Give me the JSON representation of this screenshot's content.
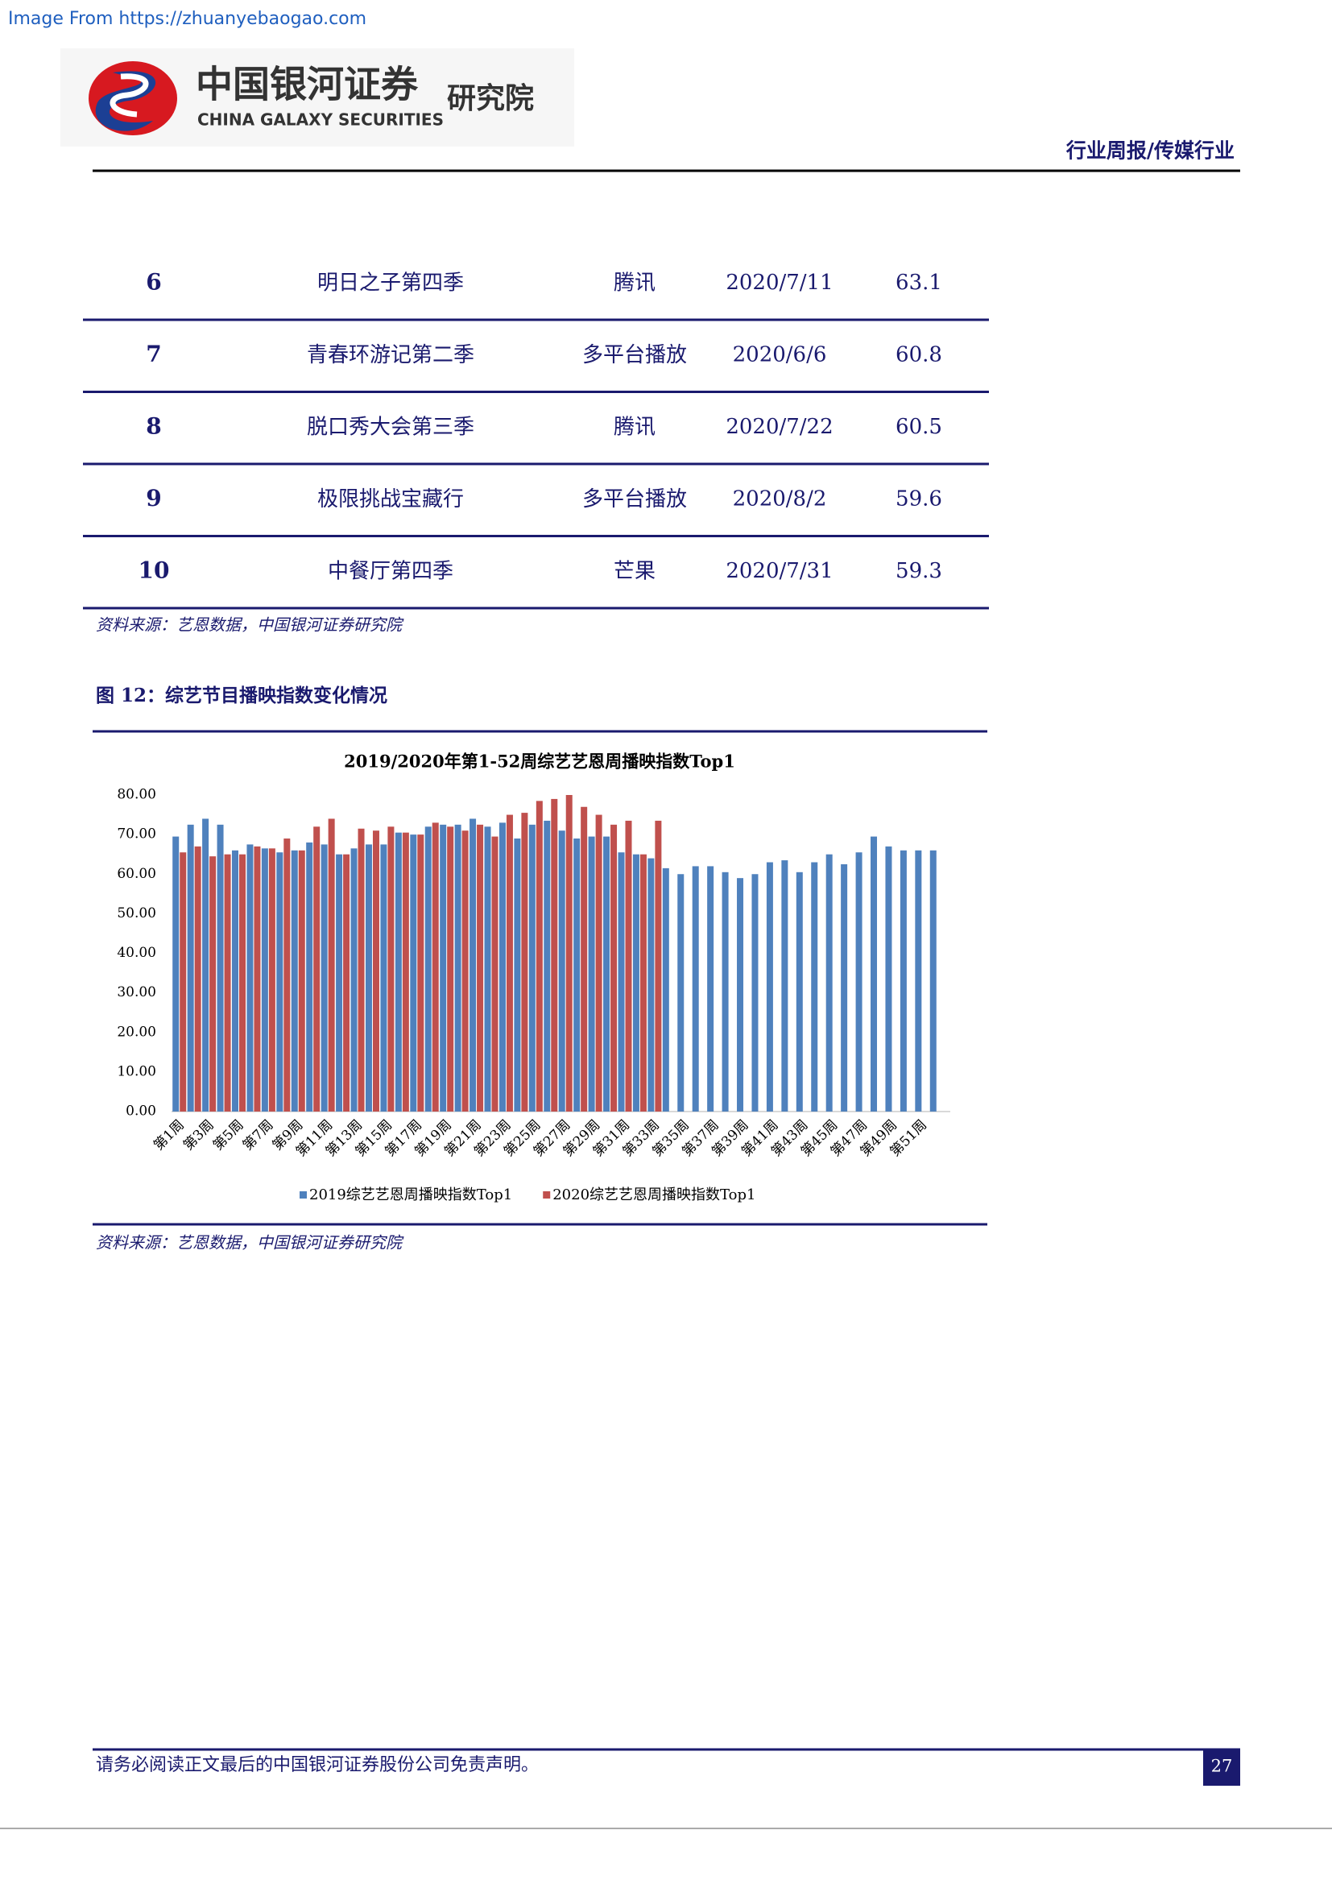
{
  "watermark": "Image From https://zhuanyebaogao.com",
  "header": {
    "logo_cn": "中国银河证券",
    "logo_en": "CHINA GALAXY SECURITIES",
    "institute": "研究院",
    "section": "行业周报/传媒行业"
  },
  "table": {
    "rows": [
      [
        "6",
        "明日之子第四季",
        "腾讯",
        "2020/7/11",
        "63.1"
      ],
      [
        "7",
        "青春环游记第二季",
        "多平台播放",
        "2020/6/6",
        "60.8"
      ],
      [
        "8",
        "脱口秀大会第三季",
        "腾讯",
        "2020/7/22",
        "60.5"
      ],
      [
        "9",
        "极限挑战宝藏行",
        "多平台播放",
        "2020/8/2",
        "59.6"
      ],
      [
        "10",
        "中餐厅第四季",
        "芒果",
        "2020/7/31",
        "59.3"
      ]
    ],
    "source": "资料来源：艺恩数据，中国银河证券研究院"
  },
  "figure": {
    "caption": "图 12：综艺节目播映指数变化情况",
    "source": "资料来源：艺恩数据，中国银河证券研究院"
  },
  "chart_data": {
    "type": "bar",
    "title": "2019/2020年第1-52周综艺艺恩周播映指数Top1",
    "categories": [
      "第1周",
      null,
      "第3周",
      null,
      "第5周",
      null,
      "第7周",
      null,
      "第9周",
      null,
      "第11周",
      null,
      "第13周",
      null,
      "第15周",
      null,
      "第17周",
      null,
      "第19周",
      null,
      "第21周",
      null,
      "第23周",
      null,
      "第25周",
      null,
      "第27周",
      null,
      "第29周",
      null,
      "第31周",
      null,
      "第33周",
      null,
      "第35周",
      null,
      "第37周",
      null,
      "第39周",
      null,
      "第41周",
      null,
      "第43周",
      null,
      "第45周",
      null,
      "第47周",
      null,
      "第49周",
      null,
      "第51周",
      null
    ],
    "series": [
      {
        "name": "2019综艺艺恩周播映指数Top1",
        "color": "#4f81bd",
        "values": [
          69.5,
          72.5,
          74,
          72.5,
          66,
          67.5,
          66.5,
          65.5,
          66,
          68,
          67.5,
          65,
          66.5,
          67.5,
          67.5,
          70.5,
          70,
          72,
          72.5,
          72.5,
          74,
          72,
          73,
          69,
          72.5,
          73.5,
          71,
          69,
          69.5,
          69.5,
          65.5,
          65,
          64,
          61.5,
          60,
          62,
          62,
          60.5,
          59,
          60,
          63,
          63.5,
          60.5,
          63,
          65,
          62.5,
          65.5,
          69.5,
          67,
          66,
          66,
          66
        ]
      },
      {
        "name": "2020综艺艺恩周播映指数Top1",
        "color": "#c0504d",
        "values": [
          65.5,
          67,
          64.5,
          65,
          65,
          67,
          66.5,
          69,
          66,
          72,
          74,
          65,
          71.5,
          71,
          72,
          70.5,
          70,
          73,
          72,
          71,
          72.5,
          69.5,
          75,
          75.5,
          78.5,
          79,
          80,
          77,
          75,
          72.5,
          73.5,
          65,
          73.5,
          null,
          null,
          null,
          null,
          null,
          null,
          null,
          null,
          null,
          null,
          null,
          null,
          null,
          null,
          null,
          null,
          null,
          null,
          null
        ]
      }
    ],
    "ylim": [
      0,
      80
    ],
    "yticks": [
      {
        "value": 0,
        "label": "0.00"
      },
      {
        "value": 10,
        "label": "10.00"
      },
      {
        "value": 20,
        "label": "20.00"
      },
      {
        "value": 30,
        "label": "30.00"
      },
      {
        "value": 40,
        "label": "40.00"
      },
      {
        "value": 50,
        "label": "50.00"
      },
      {
        "value": 60,
        "label": "60.00"
      },
      {
        "value": 70,
        "label": "70.00"
      },
      {
        "value": 80,
        "label": "80.00"
      }
    ],
    "legend": "bottom"
  },
  "footer": {
    "disclaimer": "请务必阅读正文最后的中国银河证券股份公司免责声明。",
    "page": "27"
  }
}
